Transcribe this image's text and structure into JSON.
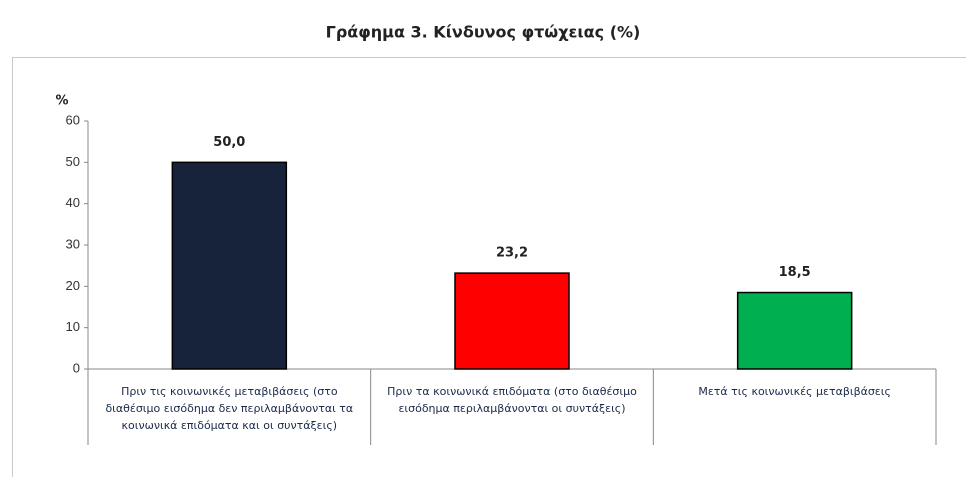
{
  "chart_data": {
    "type": "bar",
    "title": "Γράφημα 3.  Κίνδυνος φτώχειας (%)",
    "y_label": "%",
    "categories": [
      "Πριν τις κοινωνικές μεταβιβάσεις (στο διαθέσιμο εισόδημα δεν περιλαμβάνονται τα κοινωνικά επιδόματα και οι συντάξεις)",
      "Πριν τα κοινωνικά επιδόματα (στο διαθέσιμο εισόδημα περιλαμβάνονται οι συντάξεις)",
      "Μετά τις κοινωνικές μεταβιβάσεις"
    ],
    "values": [
      50.0,
      23.2,
      18.5
    ],
    "value_labels": [
      "50,0",
      "23,2",
      "18,5"
    ],
    "colors": [
      "#17223b",
      "#ff0000",
      "#00b050"
    ],
    "ylim": [
      0,
      60
    ],
    "yticks": [
      0,
      10,
      20,
      30,
      40,
      50,
      60
    ],
    "grid": false
  }
}
